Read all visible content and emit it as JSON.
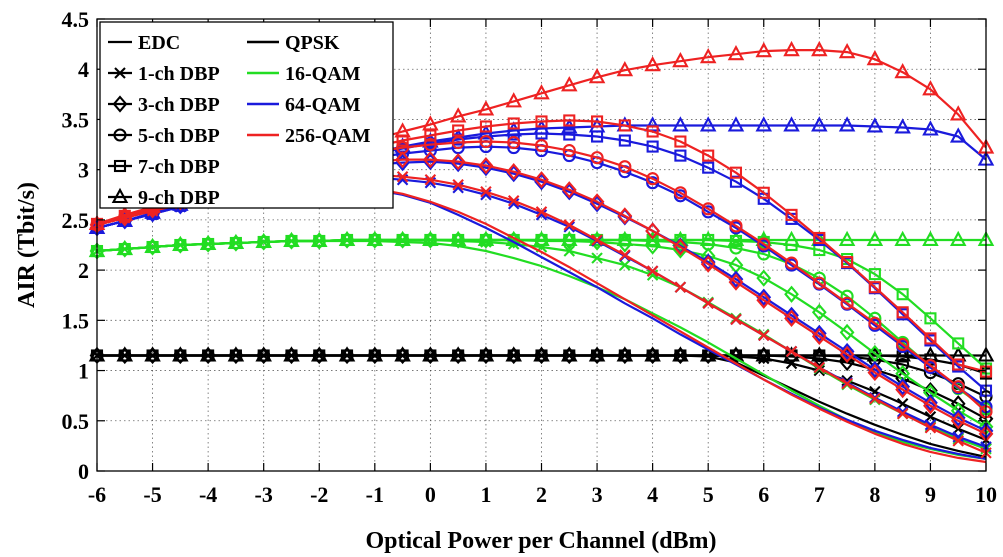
{
  "chart_data": {
    "type": "line",
    "xlabel": "Optical Power per Channel (dBm)",
    "ylabel": "AIR (Tbit/s)",
    "xlim": [
      -6,
      10
    ],
    "ylim": [
      0,
      4.5
    ],
    "xticks": [
      -6,
      -5,
      -4,
      -3,
      -2,
      -1,
      0,
      1,
      2,
      3,
      4,
      5,
      6,
      7,
      8,
      9,
      10
    ],
    "yticks": [
      0,
      0.5,
      1,
      1.5,
      2,
      2.5,
      3,
      3.5,
      4,
      4.5
    ],
    "xtick_labels": [
      "-6",
      "-5",
      "-4",
      "-3",
      "-2",
      "-1",
      "0",
      "1",
      "2",
      "3",
      "4",
      "5",
      "6",
      "7",
      "8",
      "9",
      "10"
    ],
    "ytick_labels": [
      "0",
      "0.5",
      "1",
      "1.5",
      "2",
      "2.5",
      "3",
      "3.5",
      "4",
      "4.5"
    ],
    "grid": true,
    "legend_placement": "top-left",
    "legend": {
      "markers": [
        {
          "label": "EDC",
          "marker": "none"
        },
        {
          "label": "1-ch DBP",
          "marker": "x"
        },
        {
          "label": "3-ch DBP",
          "marker": "diamond"
        },
        {
          "label": "5-ch DBP",
          "marker": "circle"
        },
        {
          "label": "7-ch DBP",
          "marker": "square"
        },
        {
          "label": "9-ch DBP",
          "marker": "triangle"
        }
      ],
      "formats": [
        {
          "label": "QPSK",
          "color": "#000000"
        },
        {
          "label": "16-QAM",
          "color": "#22dd22"
        },
        {
          "label": "64-QAM",
          "color": "#1a1adc"
        },
        {
          "label": "256-QAM",
          "color": "#ee2222"
        }
      ]
    },
    "colors": {
      "QPSK": "#000000",
      "16-QAM": "#22dd22",
      "64-QAM": "#1a1adc",
      "256-QAM": "#ee2222"
    },
    "x": [
      -6,
      -5.5,
      -5,
      -4.5,
      -4,
      -3.5,
      -3,
      -2.5,
      -2,
      -1.5,
      -1,
      -0.5,
      0,
      0.5,
      1,
      1.5,
      2,
      2.5,
      3,
      3.5,
      4,
      4.5,
      5,
      5.5,
      6,
      6.5,
      7,
      7.5,
      8,
      8.5,
      9,
      9.5,
      10
    ],
    "series": [
      {
        "format": "QPSK",
        "dbp": "EDC",
        "marker": "none",
        "values": [
          1.15,
          1.15,
          1.15,
          1.15,
          1.15,
          1.15,
          1.15,
          1.15,
          1.15,
          1.15,
          1.15,
          1.15,
          1.15,
          1.15,
          1.15,
          1.15,
          1.15,
          1.15,
          1.15,
          1.15,
          1.15,
          1.15,
          1.14,
          1.08,
          0.95,
          0.82,
          0.69,
          0.57,
          0.46,
          0.36,
          0.27,
          0.2,
          0.14
        ]
      },
      {
        "format": "QPSK",
        "dbp": "1-ch DBP",
        "marker": "x",
        "values": [
          1.15,
          1.15,
          1.15,
          1.15,
          1.15,
          1.15,
          1.15,
          1.15,
          1.15,
          1.15,
          1.15,
          1.15,
          1.15,
          1.15,
          1.15,
          1.15,
          1.15,
          1.15,
          1.15,
          1.15,
          1.15,
          1.15,
          1.15,
          1.14,
          1.12,
          1.07,
          1.0,
          0.9,
          0.79,
          0.67,
          0.54,
          0.42,
          0.31
        ]
      },
      {
        "format": "QPSK",
        "dbp": "3-ch DBP",
        "marker": "diamond",
        "values": [
          1.15,
          1.15,
          1.15,
          1.15,
          1.15,
          1.15,
          1.15,
          1.15,
          1.15,
          1.15,
          1.15,
          1.15,
          1.15,
          1.15,
          1.15,
          1.15,
          1.15,
          1.15,
          1.15,
          1.15,
          1.15,
          1.15,
          1.15,
          1.15,
          1.15,
          1.14,
          1.12,
          1.08,
          1.01,
          0.92,
          0.8,
          0.67,
          0.52
        ]
      },
      {
        "format": "QPSK",
        "dbp": "5-ch DBP",
        "marker": "circle",
        "values": [
          1.15,
          1.15,
          1.15,
          1.15,
          1.15,
          1.15,
          1.15,
          1.15,
          1.15,
          1.15,
          1.15,
          1.15,
          1.15,
          1.15,
          1.15,
          1.15,
          1.15,
          1.15,
          1.15,
          1.15,
          1.15,
          1.15,
          1.15,
          1.15,
          1.15,
          1.15,
          1.15,
          1.14,
          1.11,
          1.06,
          0.98,
          0.87,
          0.74
        ]
      },
      {
        "format": "QPSK",
        "dbp": "7-ch DBP",
        "marker": "square",
        "values": [
          1.15,
          1.15,
          1.15,
          1.15,
          1.15,
          1.15,
          1.15,
          1.15,
          1.15,
          1.15,
          1.15,
          1.15,
          1.15,
          1.15,
          1.15,
          1.15,
          1.15,
          1.15,
          1.15,
          1.15,
          1.15,
          1.15,
          1.15,
          1.15,
          1.15,
          1.15,
          1.15,
          1.15,
          1.15,
          1.14,
          1.11,
          1.06,
          0.97
        ]
      },
      {
        "format": "QPSK",
        "dbp": "9-ch DBP",
        "marker": "triangle",
        "values": [
          1.15,
          1.15,
          1.15,
          1.15,
          1.15,
          1.15,
          1.15,
          1.15,
          1.15,
          1.15,
          1.15,
          1.15,
          1.15,
          1.15,
          1.15,
          1.15,
          1.15,
          1.15,
          1.15,
          1.15,
          1.15,
          1.15,
          1.15,
          1.15,
          1.15,
          1.15,
          1.15,
          1.15,
          1.15,
          1.15,
          1.15,
          1.15,
          1.15
        ]
      },
      {
        "format": "16-QAM",
        "dbp": "EDC",
        "marker": "none",
        "values": [
          2.19,
          2.21,
          2.23,
          2.25,
          2.26,
          2.27,
          2.28,
          2.29,
          2.29,
          2.29,
          2.29,
          2.28,
          2.27,
          2.24,
          2.19,
          2.12,
          2.04,
          1.94,
          1.83,
          1.71,
          1.57,
          1.43,
          1.28,
          1.12,
          0.96,
          0.8,
          0.65,
          0.51,
          0.39,
          0.29,
          0.22,
          0.16,
          0.12
        ]
      },
      {
        "format": "16-QAM",
        "dbp": "1-ch DBP",
        "marker": "x",
        "values": [
          2.19,
          2.21,
          2.23,
          2.25,
          2.26,
          2.27,
          2.28,
          2.29,
          2.29,
          2.3,
          2.3,
          2.3,
          2.3,
          2.29,
          2.28,
          2.26,
          2.23,
          2.19,
          2.12,
          2.05,
          1.95,
          1.83,
          1.68,
          1.52,
          1.36,
          1.19,
          1.02,
          0.86,
          0.71,
          0.57,
          0.44,
          0.32,
          0.22
        ]
      },
      {
        "format": "16-QAM",
        "dbp": "3-ch DBP",
        "marker": "diamond",
        "values": [
          2.19,
          2.21,
          2.23,
          2.25,
          2.26,
          2.27,
          2.28,
          2.29,
          2.29,
          2.3,
          2.3,
          2.3,
          2.3,
          2.3,
          2.3,
          2.3,
          2.29,
          2.29,
          2.28,
          2.26,
          2.24,
          2.2,
          2.14,
          2.05,
          1.92,
          1.76,
          1.58,
          1.38,
          1.17,
          0.97,
          0.78,
          0.6,
          0.44
        ]
      },
      {
        "format": "16-QAM",
        "dbp": "5-ch DBP",
        "marker": "circle",
        "values": [
          2.19,
          2.21,
          2.23,
          2.25,
          2.26,
          2.27,
          2.28,
          2.29,
          2.29,
          2.3,
          2.3,
          2.3,
          2.3,
          2.3,
          2.3,
          2.3,
          2.3,
          2.3,
          2.3,
          2.3,
          2.29,
          2.28,
          2.26,
          2.22,
          2.16,
          2.06,
          1.92,
          1.74,
          1.52,
          1.28,
          1.04,
          0.82,
          0.62
        ]
      },
      {
        "format": "16-QAM",
        "dbp": "7-ch DBP",
        "marker": "square",
        "values": [
          2.19,
          2.21,
          2.23,
          2.25,
          2.26,
          2.27,
          2.28,
          2.29,
          2.29,
          2.3,
          2.3,
          2.3,
          2.3,
          2.3,
          2.3,
          2.3,
          2.3,
          2.3,
          2.3,
          2.3,
          2.3,
          2.3,
          2.3,
          2.29,
          2.28,
          2.25,
          2.2,
          2.11,
          1.96,
          1.76,
          1.52,
          1.27,
          1.02
        ]
      },
      {
        "format": "16-QAM",
        "dbp": "9-ch DBP",
        "marker": "triangle",
        "values": [
          2.19,
          2.21,
          2.23,
          2.25,
          2.26,
          2.27,
          2.28,
          2.29,
          2.29,
          2.3,
          2.3,
          2.3,
          2.3,
          2.3,
          2.3,
          2.3,
          2.3,
          2.3,
          2.3,
          2.3,
          2.3,
          2.3,
          2.3,
          2.3,
          2.3,
          2.3,
          2.3,
          2.3,
          2.3,
          2.3,
          2.3,
          2.3,
          2.3
        ]
      },
      {
        "format": "64-QAM",
        "dbp": "EDC",
        "marker": "none",
        "values": [
          2.42,
          2.49,
          2.56,
          2.63,
          2.68,
          2.73,
          2.77,
          2.8,
          2.82,
          2.82,
          2.8,
          2.75,
          2.67,
          2.55,
          2.42,
          2.28,
          2.13,
          1.98,
          1.83,
          1.67,
          1.52,
          1.36,
          1.21,
          1.06,
          0.91,
          0.77,
          0.63,
          0.51,
          0.4,
          0.31,
          0.23,
          0.17,
          0.12
        ]
      },
      {
        "format": "64-QAM",
        "dbp": "1-ch DBP",
        "marker": "x",
        "values": [
          2.42,
          2.49,
          2.56,
          2.63,
          2.7,
          2.76,
          2.82,
          2.87,
          2.9,
          2.92,
          2.92,
          2.9,
          2.87,
          2.82,
          2.75,
          2.66,
          2.55,
          2.43,
          2.29,
          2.14,
          1.99,
          1.83,
          1.67,
          1.51,
          1.35,
          1.19,
          1.03,
          0.88,
          0.73,
          0.59,
          0.46,
          0.34,
          0.24
        ]
      },
      {
        "format": "64-QAM",
        "dbp": "3-ch DBP",
        "marker": "diamond",
        "values": [
          2.42,
          2.49,
          2.56,
          2.64,
          2.72,
          2.79,
          2.86,
          2.92,
          2.97,
          3.01,
          3.05,
          3.07,
          3.08,
          3.06,
          3.02,
          2.96,
          2.88,
          2.78,
          2.66,
          2.53,
          2.39,
          2.24,
          2.08,
          1.91,
          1.73,
          1.55,
          1.37,
          1.19,
          1.01,
          0.84,
          0.68,
          0.53,
          0.4
        ]
      },
      {
        "format": "64-QAM",
        "dbp": "5-ch DBP",
        "marker": "circle",
        "values": [
          2.42,
          2.49,
          2.56,
          2.64,
          2.72,
          2.8,
          2.88,
          2.95,
          3.01,
          3.07,
          3.12,
          3.16,
          3.19,
          3.22,
          3.23,
          3.22,
          3.19,
          3.14,
          3.07,
          2.98,
          2.87,
          2.74,
          2.58,
          2.42,
          2.24,
          2.05,
          1.86,
          1.66,
          1.45,
          1.24,
          1.03,
          0.83,
          0.64
        ]
      },
      {
        "format": "64-QAM",
        "dbp": "7-ch DBP",
        "marker": "square",
        "values": [
          2.42,
          2.49,
          2.56,
          2.64,
          2.72,
          2.8,
          2.88,
          2.96,
          3.03,
          3.1,
          3.16,
          3.21,
          3.26,
          3.3,
          3.33,
          3.35,
          3.36,
          3.35,
          3.33,
          3.29,
          3.23,
          3.14,
          3.02,
          2.88,
          2.71,
          2.51,
          2.3,
          2.07,
          1.82,
          1.56,
          1.3,
          1.04,
          0.8
        ]
      },
      {
        "format": "64-QAM",
        "dbp": "9-ch DBP",
        "marker": "triangle",
        "values": [
          2.42,
          2.49,
          2.57,
          2.65,
          2.73,
          2.81,
          2.89,
          2.97,
          3.04,
          3.11,
          3.17,
          3.23,
          3.28,
          3.32,
          3.36,
          3.39,
          3.41,
          3.42,
          3.43,
          3.44,
          3.44,
          3.44,
          3.44,
          3.44,
          3.44,
          3.44,
          3.44,
          3.44,
          3.43,
          3.42,
          3.4,
          3.33,
          3.1
        ]
      },
      {
        "format": "256-QAM",
        "dbp": "EDC",
        "marker": "none",
        "values": [
          2.45,
          2.52,
          2.59,
          2.65,
          2.7,
          2.75,
          2.79,
          2.82,
          2.83,
          2.83,
          2.81,
          2.76,
          2.68,
          2.58,
          2.46,
          2.32,
          2.18,
          2.03,
          1.87,
          1.71,
          1.55,
          1.39,
          1.23,
          1.07,
          0.91,
          0.76,
          0.62,
          0.49,
          0.37,
          0.27,
          0.19,
          0.13,
          0.09
        ]
      },
      {
        "format": "256-QAM",
        "dbp": "1-ch DBP",
        "marker": "x",
        "values": [
          2.45,
          2.52,
          2.59,
          2.66,
          2.73,
          2.79,
          2.85,
          2.9,
          2.93,
          2.95,
          2.95,
          2.93,
          2.9,
          2.85,
          2.78,
          2.69,
          2.58,
          2.45,
          2.3,
          2.15,
          1.99,
          1.83,
          1.67,
          1.51,
          1.35,
          1.19,
          1.03,
          0.87,
          0.72,
          0.57,
          0.43,
          0.3,
          0.18
        ]
      },
      {
        "format": "256-QAM",
        "dbp": "3-ch DBP",
        "marker": "diamond",
        "values": [
          2.45,
          2.52,
          2.6,
          2.68,
          2.76,
          2.83,
          2.9,
          2.96,
          3.01,
          3.05,
          3.08,
          3.1,
          3.1,
          3.08,
          3.04,
          2.98,
          2.9,
          2.8,
          2.68,
          2.54,
          2.39,
          2.23,
          2.06,
          1.88,
          1.7,
          1.52,
          1.34,
          1.16,
          0.98,
          0.81,
          0.65,
          0.5,
          0.37
        ]
      },
      {
        "format": "256-QAM",
        "dbp": "5-ch DBP",
        "marker": "circle",
        "values": [
          2.45,
          2.53,
          2.61,
          2.69,
          2.77,
          2.85,
          2.93,
          3.0,
          3.07,
          3.13,
          3.18,
          3.22,
          3.25,
          3.27,
          3.28,
          3.27,
          3.24,
          3.19,
          3.12,
          3.03,
          2.91,
          2.77,
          2.61,
          2.44,
          2.26,
          2.07,
          1.87,
          1.67,
          1.47,
          1.26,
          1.05,
          0.84,
          0.59
        ]
      },
      {
        "format": "256-QAM",
        "dbp": "7-ch DBP",
        "marker": "square",
        "values": [
          2.46,
          2.54,
          2.62,
          2.7,
          2.78,
          2.86,
          2.95,
          3.03,
          3.1,
          3.17,
          3.23,
          3.29,
          3.34,
          3.39,
          3.43,
          3.46,
          3.48,
          3.49,
          3.48,
          3.44,
          3.38,
          3.28,
          3.14,
          2.97,
          2.77,
          2.55,
          2.32,
          2.08,
          1.83,
          1.58,
          1.32,
          1.06,
          0.99
        ]
      },
      {
        "format": "256-QAM",
        "dbp": "9-ch DBP",
        "marker": "triangle",
        "values": [
          2.46,
          2.55,
          2.63,
          2.71,
          2.8,
          2.89,
          2.97,
          3.06,
          3.14,
          3.22,
          3.3,
          3.38,
          3.45,
          3.53,
          3.6,
          3.68,
          3.76,
          3.84,
          3.92,
          3.99,
          4.04,
          4.08,
          4.12,
          4.15,
          4.18,
          4.19,
          4.19,
          4.17,
          4.1,
          3.97,
          3.8,
          3.55,
          3.22
        ]
      }
    ]
  }
}
